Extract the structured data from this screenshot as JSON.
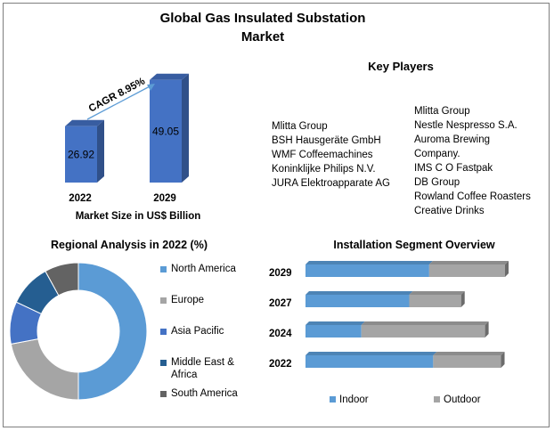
{
  "title_line1": "Global Gas Insulated Substation",
  "title_line2": "Market",
  "market_size": {
    "cagr_label": "CAGR 8.95%",
    "caption": "Market Size in US$ Billion"
  },
  "key_players": {
    "title": "Key Players",
    "column1": [
      "Mlitta Group",
      "BSH Hausgeräte GmbH",
      "WMF Coffeemachines",
      "Koninklijke Philips N.V.",
      "JURA Elektroapparate AG"
    ],
    "column2": [
      "Mlitta Group",
      "Nestle Nespresso S.A.",
      "Auroma Brewing",
      "Company.",
      "IMS C O Fastpak",
      "DB Group",
      "Rowland Coffee Roasters",
      "Creative Drinks"
    ]
  },
  "regional": {
    "title": "Regional Analysis in 2022 (%)"
  },
  "installation": {
    "title": "Installation Segment Overview"
  },
  "colors": {
    "bar_blue": "#4472c4",
    "light_blue": "#5b9bd5",
    "gray": "#a5a5a5",
    "dark_blue": "#255e91",
    "dark_gray": "#636363"
  },
  "chart_data": [
    {
      "type": "bar",
      "categories": [
        "2022",
        "2029"
      ],
      "values": [
        26.92,
        49.05
      ],
      "title": "",
      "xlabel": "Market Size in US$ Billion",
      "ylabel": "",
      "ylim": [
        0,
        55
      ]
    },
    {
      "type": "pie",
      "title": "Regional Analysis in 2022 (%)",
      "categories": [
        "North America",
        "Europe",
        "Asia Pacific",
        "Middle East & Africa",
        "South America"
      ],
      "values": [
        50,
        22,
        10,
        10,
        8
      ],
      "legend": "right"
    },
    {
      "type": "bar",
      "orientation": "horizontal",
      "stacked": true,
      "title": "Installation Segment Overview",
      "categories": [
        "2029",
        "2027",
        "2024",
        "2022"
      ],
      "series": [
        {
          "name": "Indoor",
          "values": [
            62,
            52,
            28,
            64
          ]
        },
        {
          "name": "Outdoor",
          "values": [
            38,
            26,
            62,
            34
          ]
        }
      ],
      "legend": "bottom"
    }
  ]
}
